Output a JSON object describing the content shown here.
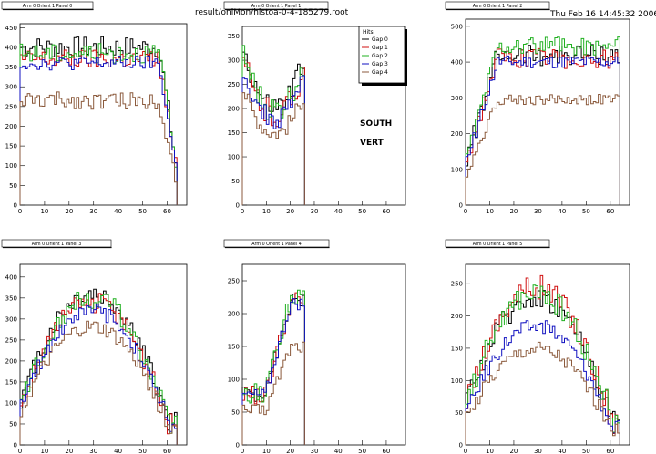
{
  "header": {
    "filename": "result/onlMon/histoa-0-4-185279.root",
    "timestamp": "Thu Feb 16 14:45:32 2006"
  },
  "annotations": {
    "line1": "SOUTH",
    "line2": "VERT"
  },
  "legend": {
    "title": "Hits",
    "entries": [
      {
        "label": "Gap 0",
        "color": "#000000"
      },
      {
        "label": "Gap 1",
        "color": "#d01010"
      },
      {
        "label": "Gap 2",
        "color": "#20b020"
      },
      {
        "label": "Gap 3",
        "color": "#1010c0"
      },
      {
        "label": "Gap 4",
        "color": "#8b5a3c"
      }
    ]
  },
  "chart_data": [
    {
      "type": "histogram",
      "title": "Arm 0 Orient 1 Panel 0",
      "xlim": [
        0,
        68
      ],
      "ylim": [
        0,
        460
      ],
      "xticks": [
        0,
        10,
        20,
        30,
        40,
        50,
        60
      ],
      "yticks": [
        0,
        50,
        100,
        150,
        200,
        250,
        300,
        350,
        400,
        450
      ],
      "nbins": 64,
      "shape": "flat",
      "series": [
        {
          "name": "Gap 0",
          "level": 400,
          "noise": 28
        },
        {
          "name": "Gap 1",
          "level": 370,
          "noise": 25
        },
        {
          "name": "Gap 2",
          "level": 385,
          "noise": 25
        },
        {
          "name": "Gap 3",
          "level": 360,
          "noise": 18
        },
        {
          "name": "Gap 4",
          "level": 265,
          "noise": 22
        }
      ]
    },
    {
      "type": "histogram",
      "title": "Arm 0 Orient 1 Panel 1",
      "xlim": [
        0,
        68
      ],
      "ylim": [
        0,
        370
      ],
      "xticks": [
        0,
        10,
        20,
        30,
        40,
        50,
        60
      ],
      "yticks": [
        0,
        50,
        100,
        150,
        200,
        250,
        300,
        350
      ],
      "nbins": 26,
      "shape": "bowl",
      "series": [
        {
          "name": "Gap 0",
          "level": 270,
          "noise": 25
        },
        {
          "name": "Gap 1",
          "level": 250,
          "noise": 30
        },
        {
          "name": "Gap 2",
          "level": 260,
          "noise": 28
        },
        {
          "name": "Gap 3",
          "level": 235,
          "noise": 22
        },
        {
          "name": "Gap 4",
          "level": 200,
          "noise": 18
        }
      ]
    },
    {
      "type": "histogram",
      "title": "Arm 0 Orient 1 Panel 2",
      "xlim": [
        0,
        68
      ],
      "ylim": [
        0,
        520
      ],
      "xticks": [
        0,
        10,
        20,
        30,
        40,
        50,
        60
      ],
      "yticks": [
        0,
        100,
        200,
        300,
        400,
        500
      ],
      "nbins": 64,
      "shape": "rise",
      "series": [
        {
          "name": "Gap 0",
          "level": 420,
          "noise": 30
        },
        {
          "name": "Gap 1",
          "level": 410,
          "noise": 28
        },
        {
          "name": "Gap 2",
          "level": 445,
          "noise": 25
        },
        {
          "name": "Gap 3",
          "level": 400,
          "noise": 18
        },
        {
          "name": "Gap 4",
          "level": 295,
          "noise": 15
        }
      ]
    },
    {
      "type": "histogram",
      "title": "Arm 0 Orient 1 Panel 3",
      "xlim": [
        0,
        68
      ],
      "ylim": [
        0,
        430
      ],
      "xticks": [
        0,
        10,
        20,
        30,
        40,
        50,
        60
      ],
      "yticks": [
        0,
        50,
        100,
        150,
        200,
        250,
        300,
        350,
        400
      ],
      "nbins": 64,
      "shape": "arch",
      "series": [
        {
          "name": "Gap 0",
          "level": 360,
          "noise": 25
        },
        {
          "name": "Gap 1",
          "level": 340,
          "noise": 25
        },
        {
          "name": "Gap 2",
          "level": 350,
          "noise": 25
        },
        {
          "name": "Gap 3",
          "level": 320,
          "noise": 18
        },
        {
          "name": "Gap 4",
          "level": 280,
          "noise": 18
        }
      ]
    },
    {
      "type": "histogram",
      "title": "Arm 0 Orient 1 Panel 4",
      "xlim": [
        0,
        68
      ],
      "ylim": [
        0,
        275
      ],
      "xticks": [
        0,
        10,
        20,
        30,
        40,
        50,
        60
      ],
      "yticks": [
        0,
        50,
        100,
        150,
        200,
        250
      ],
      "nbins": 26,
      "shape": "ramp",
      "series": [
        {
          "name": "Gap 0",
          "level": 220,
          "noise": 12
        },
        {
          "name": "Gap 1",
          "level": 220,
          "noise": 15
        },
        {
          "name": "Gap 2",
          "level": 225,
          "noise": 15
        },
        {
          "name": "Gap 3",
          "level": 215,
          "noise": 10
        },
        {
          "name": "Gap 4",
          "level": 150,
          "noise": 10
        }
      ]
    },
    {
      "type": "histogram",
      "title": "Arm 0 Orient 1 Panel 5",
      "xlim": [
        0,
        68
      ],
      "ylim": [
        0,
        280
      ],
      "xticks": [
        0,
        10,
        20,
        30,
        40,
        50,
        60
      ],
      "yticks": [
        0,
        50,
        100,
        150,
        200,
        250
      ],
      "nbins": 64,
      "shape": "arch",
      "series": [
        {
          "name": "Gap 0",
          "level": 230,
          "noise": 18
        },
        {
          "name": "Gap 1",
          "level": 245,
          "noise": 20
        },
        {
          "name": "Gap 2",
          "level": 235,
          "noise": 18
        },
        {
          "name": "Gap 3",
          "level": 185,
          "noise": 12
        },
        {
          "name": "Gap 4",
          "level": 150,
          "noise": 12
        }
      ]
    }
  ]
}
